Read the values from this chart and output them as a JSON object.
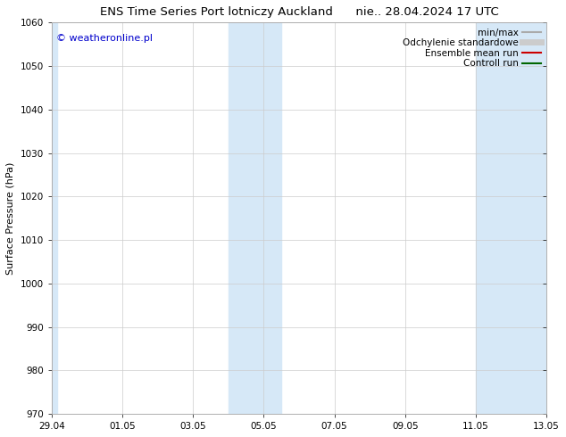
{
  "title": "ENS Time Series Port lotniczy Auckland      nie.. 28.04.2024 17 UTC",
  "ylabel": "Surface Pressure (hPa)",
  "ylim": [
    970,
    1060
  ],
  "yticks": [
    970,
    980,
    990,
    1000,
    1010,
    1020,
    1030,
    1040,
    1050,
    1060
  ],
  "xtick_labels": [
    "29.04",
    "01.05",
    "03.05",
    "05.05",
    "07.05",
    "09.05",
    "11.05",
    "13.05"
  ],
  "xtick_positions": [
    0,
    2,
    4,
    6,
    8,
    10,
    12,
    14
  ],
  "xlim": [
    0,
    14
  ],
  "watermark": "© weatheronline.pl",
  "watermark_color": "#0000cc",
  "bg_color": "#ffffff",
  "plot_bg_color": "#ffffff",
  "shaded_bands": [
    {
      "x_start": 0.0,
      "x_end": 0.15
    },
    {
      "x_start": 5.0,
      "x_end": 6.5
    },
    {
      "x_start": 12.0,
      "x_end": 14.0
    }
  ],
  "shaded_color": "#d6e8f7",
  "legend_items": [
    {
      "label": "min/max",
      "color": "#aaaaaa",
      "lw": 1.5,
      "ls": "-"
    },
    {
      "label": "Odchylenie standardowe",
      "color": "#cccccc",
      "lw": 5,
      "ls": "-"
    },
    {
      "label": "Ensemble mean run",
      "color": "#cc0000",
      "lw": 1.5,
      "ls": "-"
    },
    {
      "label": "Controll run",
      "color": "#006600",
      "lw": 1.5,
      "ls": "-"
    }
  ],
  "font_size_title": 9.5,
  "font_size_axis": 8,
  "font_size_ticks": 7.5,
  "font_size_legend": 7.5,
  "font_size_watermark": 8
}
